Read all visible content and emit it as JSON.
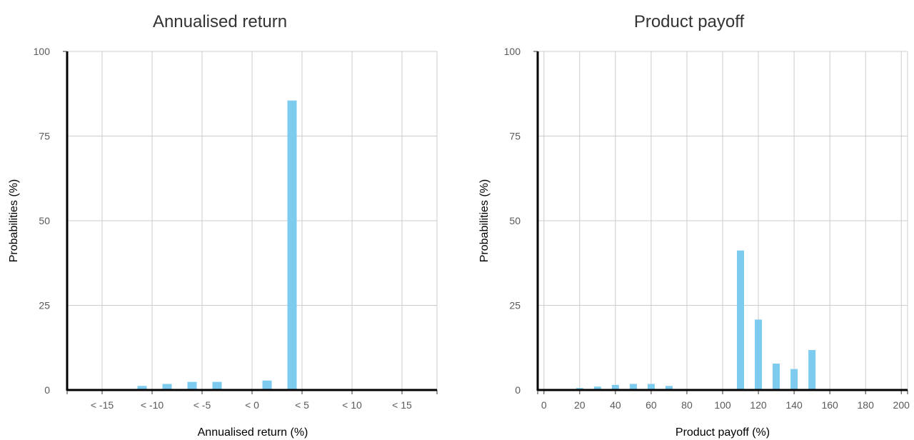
{
  "colors": {
    "bar": "#7dcbef",
    "grid": "#cccccc",
    "axis": "#000000"
  },
  "chart_data": [
    {
      "type": "bar",
      "title": "Annualised return",
      "xlabel": "Annualised return (%)",
      "ylabel": "Probabilities (%)",
      "ylim": [
        0,
        100
      ],
      "yticks": [
        "0",
        "25",
        "50",
        "75",
        "100"
      ],
      "xlim": [
        -18.5,
        18.5
      ],
      "xtick_values": [
        -15,
        -10,
        -5,
        0,
        5,
        10,
        15
      ],
      "xtick_labels": [
        "< -15",
        "< -10",
        "< -5",
        "< 0",
        "< 5",
        "< 10",
        "< 15"
      ],
      "x": [
        -11,
        -8.5,
        -6,
        -3.5,
        1.5,
        4
      ],
      "values": [
        1.2,
        1.8,
        2.4,
        2.4,
        2.8,
        85.5
      ],
      "grid": true
    },
    {
      "type": "bar",
      "title": "Product payoff",
      "xlabel": "Product payoff (%)",
      "ylabel": "Probabilities (%)",
      "ylim": [
        0,
        100
      ],
      "yticks": [
        "0",
        "25",
        "50",
        "75",
        "100"
      ],
      "xlim": [
        -3.5,
        203.5
      ],
      "xtick_values": [
        0,
        20,
        40,
        60,
        80,
        100,
        120,
        140,
        160,
        180,
        200
      ],
      "xtick_labels": [
        "0",
        "20",
        "40",
        "60",
        "80",
        "100",
        "120",
        "140",
        "160",
        "180",
        "200"
      ],
      "x": [
        20,
        30,
        40,
        50,
        60,
        70,
        110,
        120,
        130,
        140,
        150
      ],
      "values": [
        0.6,
        1.0,
        1.5,
        1.8,
        1.8,
        1.2,
        41.2,
        20.8,
        7.8,
        6.2,
        11.8
      ],
      "grid": true
    }
  ]
}
